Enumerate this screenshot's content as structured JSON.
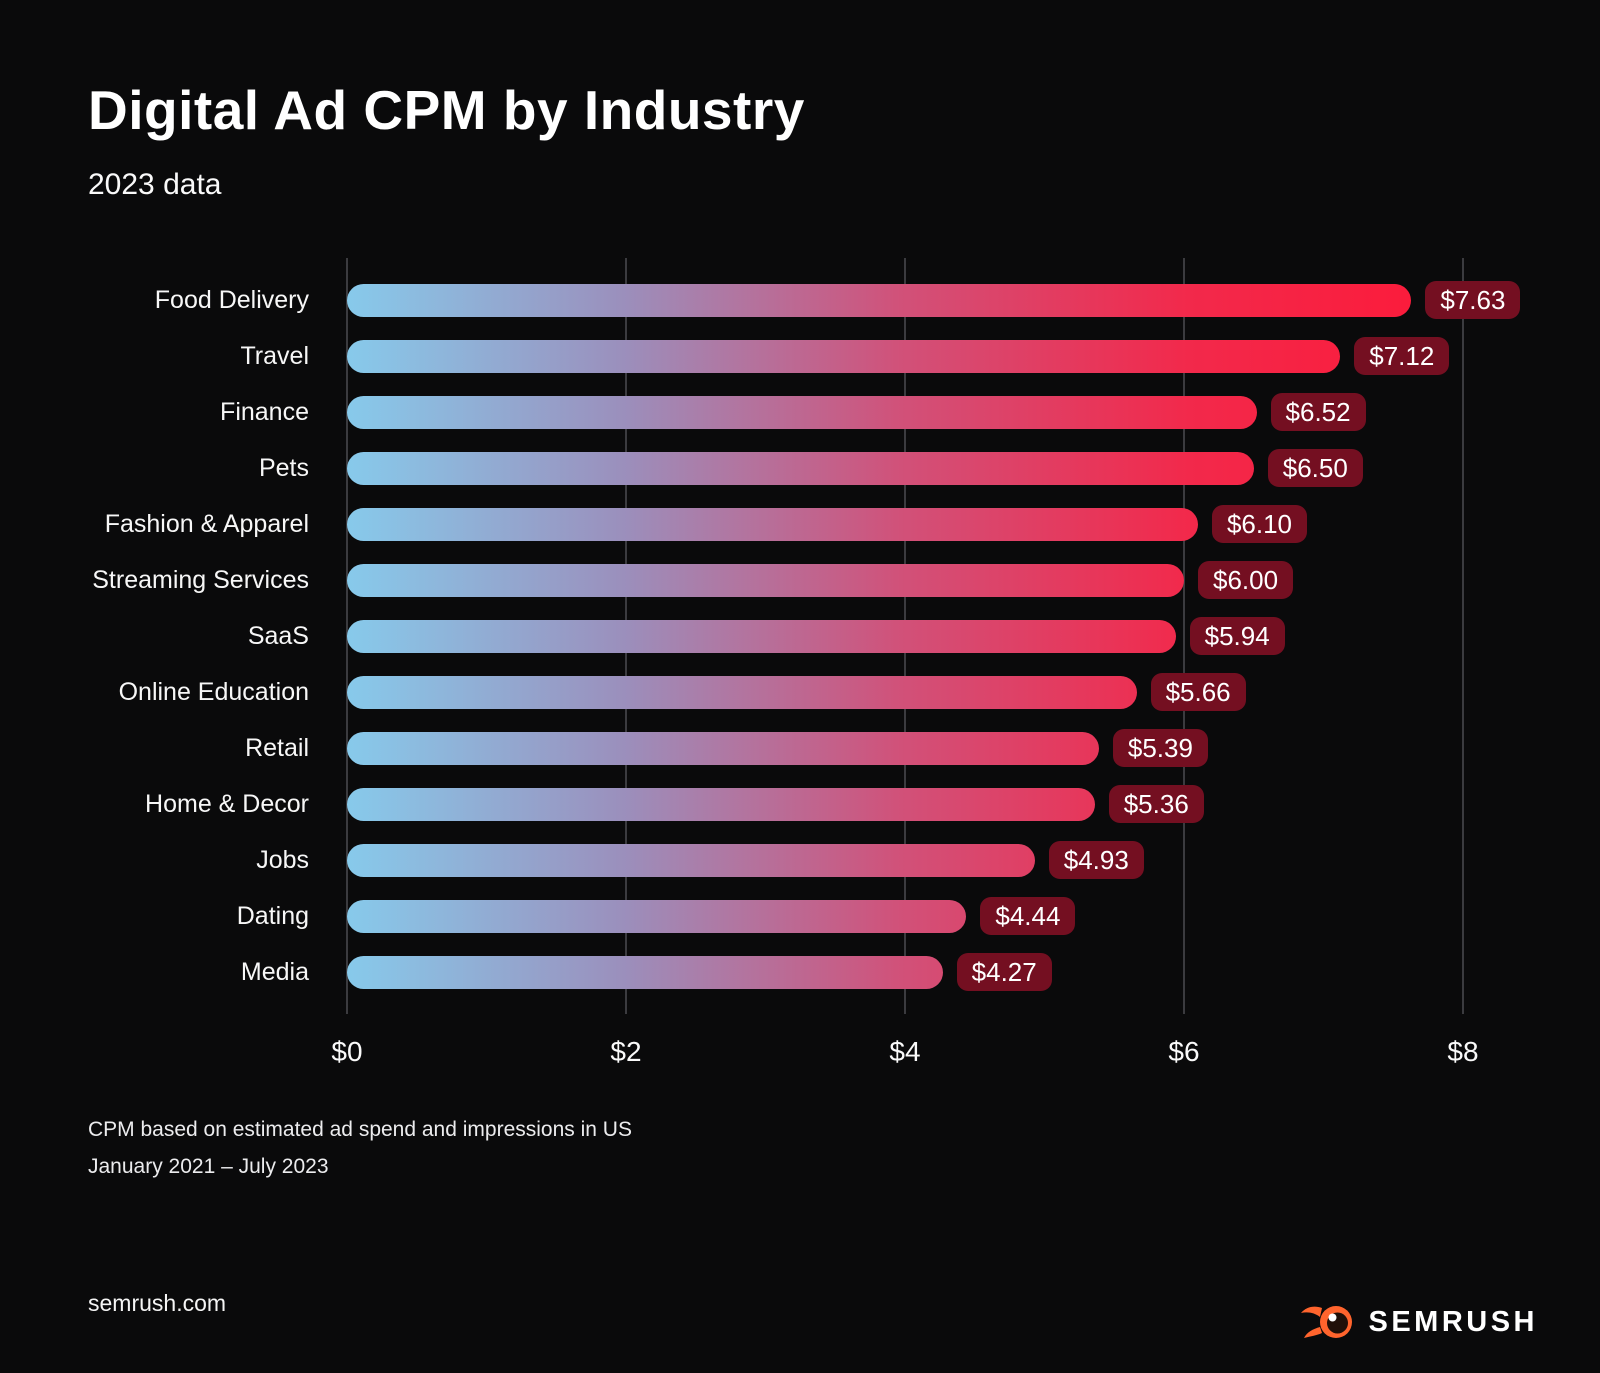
{
  "title": "Digital Ad CPM by Industry",
  "subtitle": "2023 data",
  "chart_data": {
    "type": "bar",
    "orientation": "horizontal",
    "title": "Digital Ad CPM by Industry",
    "subtitle": "2023 data",
    "categories": [
      "Food Delivery",
      "Travel",
      "Finance",
      "Pets",
      "Fashion & Apparel",
      "Streaming Services",
      "SaaS",
      "Online Education",
      "Retail",
      "Home & Decor",
      "Jobs",
      "Dating",
      "Media"
    ],
    "values": [
      7.63,
      7.12,
      6.52,
      6.5,
      6.1,
      6.0,
      5.94,
      5.66,
      5.39,
      5.36,
      4.93,
      4.44,
      4.27
    ],
    "value_labels": [
      "$7.63",
      "$7.12",
      "$6.52",
      "$6.50",
      "$6.10",
      "$6.00",
      "$5.94",
      "$5.66",
      "$5.39",
      "$5.36",
      "$4.93",
      "$4.44",
      "$4.27"
    ],
    "x_ticks": [
      "$0",
      "$2",
      "$4",
      "$6",
      "$8"
    ],
    "xlim": [
      0,
      8
    ],
    "grid": "vertical-only",
    "legend": "none",
    "bar_gradient_stops": [
      [
        "#87caeb",
        0
      ],
      [
        "#9b8fbc",
        26
      ],
      [
        "#d15179",
        52
      ],
      [
        "#f2294b",
        79
      ],
      [
        "#fb1c3c",
        100
      ]
    ],
    "badge_color": "#740f21",
    "gridline_color": "#3b3b3f",
    "background_color": "#0a0a0b"
  },
  "footnote_line1": "CPM based on estimated ad spend and impressions in US",
  "footnote_line2": "January 2021 – July 2023",
  "footer": {
    "website": "semrush.com",
    "brand": "SEMRUSH",
    "brand_icon": "semrush-fireball-icon",
    "brand_orange": "#ff642d"
  }
}
